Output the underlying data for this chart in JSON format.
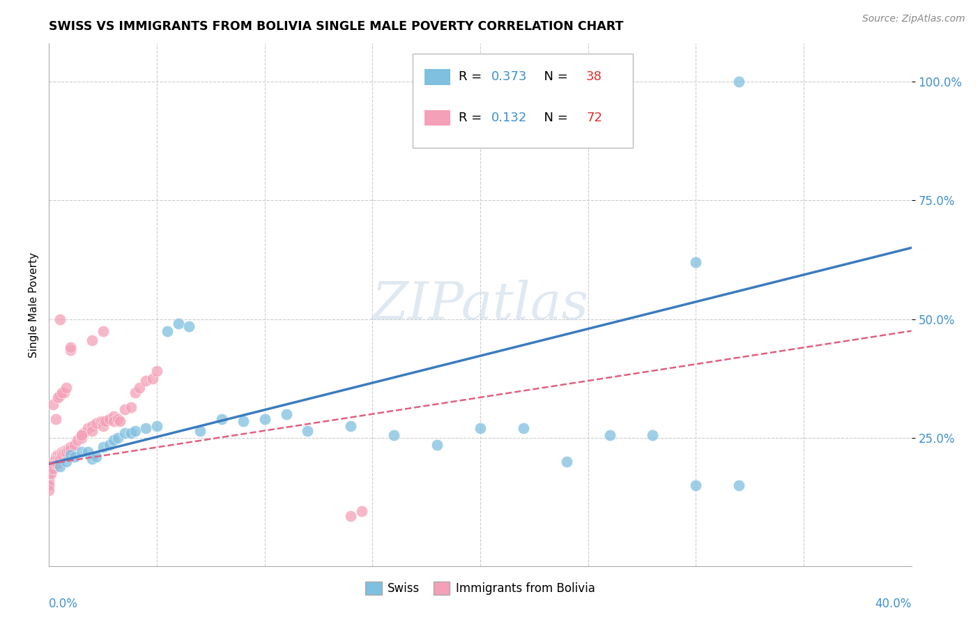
{
  "title": "SWISS VS IMMIGRANTS FROM BOLIVIA SINGLE MALE POVERTY CORRELATION CHART",
  "source": "Source: ZipAtlas.com",
  "ylabel": "Single Male Poverty",
  "xlim": [
    0,
    0.4
  ],
  "ylim": [
    -0.02,
    1.08
  ],
  "legend_swiss_R": "0.373",
  "legend_swiss_N": "38",
  "legend_bolivia_R": "0.132",
  "legend_bolivia_N": "72",
  "swiss_color": "#7fbfdf",
  "bolivia_color": "#f4a0b8",
  "trendline_swiss_color": "#3a7bbf",
  "trendline_bolivia_color": "#e06080",
  "background_color": "#ffffff",
  "grid_color": "#cccccc",
  "swiss_x": [
    0.005,
    0.008,
    0.01,
    0.012,
    0.015,
    0.018,
    0.02,
    0.022,
    0.025,
    0.028,
    0.03,
    0.032,
    0.035,
    0.038,
    0.04,
    0.045,
    0.05,
    0.055,
    0.06,
    0.065,
    0.07,
    0.08,
    0.09,
    0.1,
    0.11,
    0.12,
    0.14,
    0.16,
    0.18,
    0.2,
    0.22,
    0.24,
    0.26,
    0.28,
    0.3,
    0.32,
    0.3,
    0.32
  ],
  "swiss_y": [
    0.19,
    0.2,
    0.215,
    0.21,
    0.22,
    0.22,
    0.205,
    0.21,
    0.23,
    0.235,
    0.245,
    0.25,
    0.26,
    0.26,
    0.265,
    0.27,
    0.275,
    0.475,
    0.49,
    0.485,
    0.265,
    0.29,
    0.285,
    0.29,
    0.3,
    0.265,
    0.275,
    0.255,
    0.235,
    0.27,
    0.27,
    0.2,
    0.255,
    0.255,
    0.15,
    0.15,
    0.62,
    1.0
  ],
  "bolivia_x": [
    0.0,
    0.0,
    0.0,
    0.0,
    0.0,
    0.0,
    0.0,
    0.0,
    0.0,
    0.0,
    0.001,
    0.001,
    0.001,
    0.002,
    0.002,
    0.002,
    0.003,
    0.003,
    0.003,
    0.004,
    0.004,
    0.004,
    0.005,
    0.005,
    0.006,
    0.006,
    0.007,
    0.008,
    0.008,
    0.009,
    0.01,
    0.01,
    0.012,
    0.013,
    0.015,
    0.015,
    0.016,
    0.018,
    0.02,
    0.02,
    0.022,
    0.024,
    0.025,
    0.025,
    0.026,
    0.028,
    0.03,
    0.03,
    0.032,
    0.033,
    0.035,
    0.038,
    0.04,
    0.042,
    0.045,
    0.048,
    0.05,
    0.02,
    0.025,
    0.01,
    0.005,
    0.003,
    0.007,
    0.002,
    0.004,
    0.006,
    0.008,
    0.015,
    0.14,
    0.145,
    0.005,
    0.01
  ],
  "bolivia_y": [
    0.19,
    0.185,
    0.18,
    0.175,
    0.17,
    0.165,
    0.16,
    0.155,
    0.15,
    0.14,
    0.195,
    0.185,
    0.175,
    0.2,
    0.195,
    0.185,
    0.21,
    0.205,
    0.195,
    0.215,
    0.205,
    0.195,
    0.215,
    0.205,
    0.22,
    0.215,
    0.22,
    0.225,
    0.22,
    0.225,
    0.23,
    0.225,
    0.235,
    0.245,
    0.255,
    0.25,
    0.26,
    0.27,
    0.275,
    0.265,
    0.28,
    0.285,
    0.285,
    0.275,
    0.285,
    0.29,
    0.295,
    0.285,
    0.29,
    0.285,
    0.31,
    0.315,
    0.345,
    0.355,
    0.37,
    0.375,
    0.39,
    0.455,
    0.475,
    0.435,
    0.34,
    0.29,
    0.345,
    0.32,
    0.335,
    0.345,
    0.355,
    0.255,
    0.085,
    0.095,
    0.5,
    0.44
  ]
}
